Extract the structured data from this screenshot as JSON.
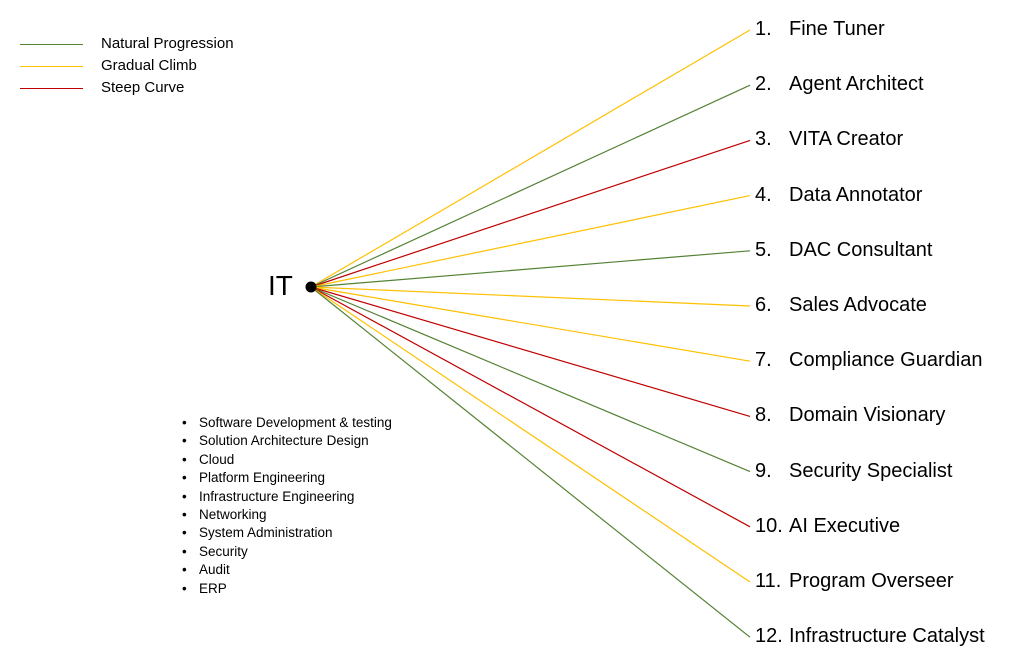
{
  "colors": {
    "natural": "#548235",
    "gradual": "#FFC000",
    "steep": "#C00000",
    "hub": "#000000"
  },
  "legend": [
    {
      "key": "natural",
      "label": "Natural Progression"
    },
    {
      "key": "gradual",
      "label": "Gradual Climb"
    },
    {
      "key": "steep",
      "label": "Steep Curve"
    }
  ],
  "hub": {
    "label": "IT"
  },
  "skills": [
    "Software Development & testing",
    "Solution Architecture Design",
    "Cloud",
    "Platform Engineering",
    "Infrastructure Engineering",
    "Networking",
    "System Administration",
    "Security",
    "Audit",
    "ERP"
  ],
  "roles": [
    {
      "number": "1.",
      "name": "Fine Tuner",
      "path": "gradual"
    },
    {
      "number": "2.",
      "name": "Agent Architect",
      "path": "natural"
    },
    {
      "number": "3.",
      "name": "VITA Creator",
      "path": "steep"
    },
    {
      "number": "4.",
      "name": "Data Annotator",
      "path": "gradual"
    },
    {
      "number": "5.",
      "name": "DAC Consultant",
      "path": "natural"
    },
    {
      "number": "6.",
      "name": "Sales Advocate",
      "path": "gradual"
    },
    {
      "number": "7.",
      "name": "Compliance Guardian",
      "path": "gradual"
    },
    {
      "number": "8.",
      "name": "Domain Visionary",
      "path": "steep"
    },
    {
      "number": "9.",
      "name": "Security Specialist",
      "path": "natural"
    },
    {
      "number": "10.",
      "name": "AI Executive",
      "path": "steep"
    },
    {
      "number": "11.",
      "name": "Program Overseer",
      "path": "gradual"
    },
    {
      "number": "12.",
      "name": "Infrastructure Catalyst",
      "path": "natural"
    }
  ]
}
